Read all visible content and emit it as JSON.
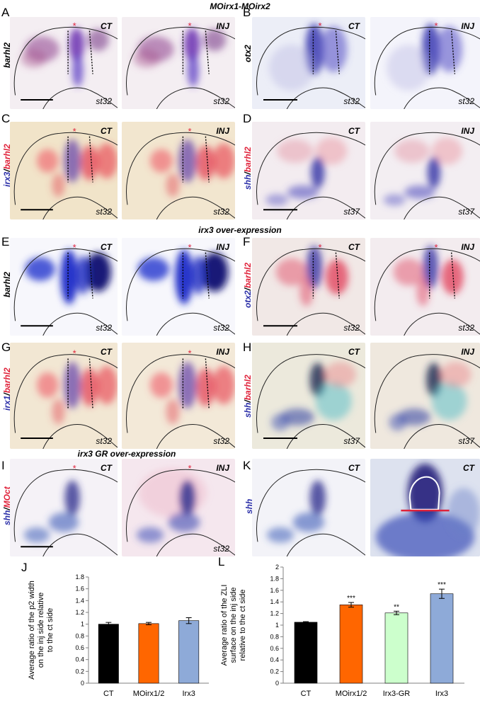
{
  "sections": {
    "moirx": "MOirx1-MOirx2",
    "over": "irx3 over-expression",
    "gr": "irx3 GR over-expression"
  },
  "panel_letters": [
    "A",
    "B",
    "C",
    "D",
    "E",
    "F",
    "G",
    "H",
    "I",
    "K",
    "J",
    "L"
  ],
  "gene_labels": {
    "A": [
      {
        "t": "barhl2",
        "c": "k"
      }
    ],
    "B": [
      {
        "t": "otx2",
        "c": "k"
      }
    ],
    "C": [
      {
        "t": "irx3",
        "c": "b"
      },
      {
        "t": "/",
        "c": "k"
      },
      {
        "t": "barhl2",
        "c": "r"
      }
    ],
    "D": [
      {
        "t": "shh",
        "c": "b"
      },
      {
        "t": "/",
        "c": "k"
      },
      {
        "t": "barhl2",
        "c": "r"
      }
    ],
    "E": [
      {
        "t": "barhl2",
        "c": "k"
      }
    ],
    "F": [
      {
        "t": "otx2",
        "c": "b"
      },
      {
        "t": "/",
        "c": "k"
      },
      {
        "t": "barhl2",
        "c": "r"
      }
    ],
    "G": [
      {
        "t": "irx1",
        "c": "b"
      },
      {
        "t": "/",
        "c": "k"
      },
      {
        "t": "barhl2",
        "c": "r"
      }
    ],
    "H": [
      {
        "t": "shh",
        "c": "b"
      },
      {
        "t": "/",
        "c": "k"
      },
      {
        "t": "barhl2",
        "c": "r"
      }
    ],
    "I": [
      {
        "t": "shh",
        "c": "b"
      },
      {
        "t": "/",
        "c": "k"
      },
      {
        "t": "MOct",
        "c": "r"
      }
    ],
    "K": [
      {
        "t": "shh",
        "c": "b"
      }
    ]
  },
  "tags": {
    "ct": "CT",
    "inj": "INJ"
  },
  "stages": {
    "s32": "st32",
    "s37": "st37"
  },
  "chart_data": [
    {
      "panel": "J",
      "type": "bar",
      "categories": [
        "CT",
        "MOirx1/2",
        "Irx3"
      ],
      "values": [
        1.0,
        1.01,
        1.06
      ],
      "errors": [
        0.03,
        0.02,
        0.05
      ],
      "significance": [
        "",
        "",
        ""
      ],
      "colors": [
        "#000000",
        "#ff6600",
        "#8eaad8"
      ],
      "ylabel": "Average ratio of the p2 width on the inj side relative to the ct side",
      "ylabel_lines": [
        "Average ratio of the p2 width",
        "on the inj side relative",
        "to the ct side"
      ],
      "ylim": [
        0,
        1.8
      ],
      "yticks": [
        "0",
        "0.2",
        "0.4",
        "0.6",
        "0.8",
        "1",
        "1.2",
        "1.4",
        "1.6",
        "1.8"
      ],
      "grid": false
    },
    {
      "panel": "L",
      "type": "bar",
      "categories": [
        "CT",
        "MOirx1/2",
        "Irx3-GR",
        "Irx3"
      ],
      "values": [
        1.05,
        1.35,
        1.21,
        1.54
      ],
      "errors": [
        0.01,
        0.04,
        0.03,
        0.08
      ],
      "significance": [
        "",
        "***",
        "**",
        "***"
      ],
      "colors": [
        "#000000",
        "#ff6600",
        "#ccffcc",
        "#8eaad8"
      ],
      "ylabel": "Average ratio of the ZLI surface on the inj side relative to the ct side",
      "ylabel_lines": [
        "Average ratio of the ZLI",
        "surface on the inj side",
        "relative to the ct side"
      ],
      "ylim": [
        0,
        2
      ],
      "yticks": [
        "0",
        "0.2",
        "0.4",
        "0.6",
        "0.8",
        "1",
        "1.2",
        "1.4",
        "1.6",
        "1.8",
        "2"
      ],
      "grid": false
    }
  ]
}
